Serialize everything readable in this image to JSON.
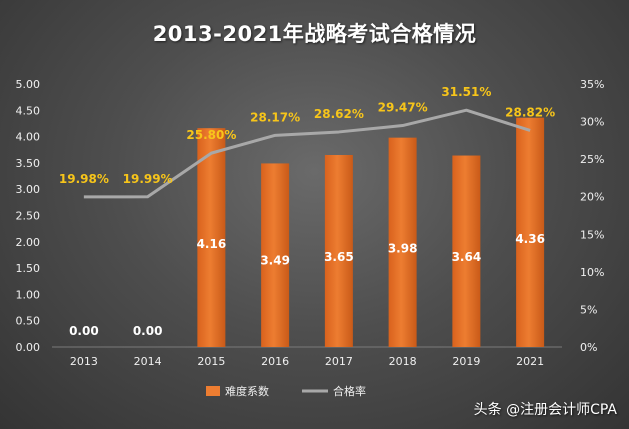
{
  "title": "2013-2021年战略考试合格情况",
  "footer_text": "头条 @注册会计师CPA",
  "colors": {
    "bar": "#ed7d31",
    "line": "#a8a8a8",
    "rate_label": "#f7c51a",
    "bar_label": "#ffffff"
  },
  "chart_data": {
    "type": "bar",
    "categories": [
      "2013",
      "2014",
      "2015",
      "2016",
      "2017",
      "2018",
      "2019",
      "2021"
    ],
    "series": [
      {
        "name": "难度系数",
        "type": "bar",
        "axis": "left",
        "values": [
          0.0,
          0.0,
          4.16,
          3.49,
          3.65,
          3.98,
          3.64,
          4.36
        ],
        "labels": [
          "0.00",
          "0.00",
          "4.16",
          "3.49",
          "3.65",
          "3.98",
          "3.64",
          "4.36"
        ]
      },
      {
        "name": "合格率",
        "type": "line",
        "axis": "right",
        "values": [
          19.98,
          19.99,
          25.8,
          28.17,
          28.62,
          29.47,
          31.51,
          28.82
        ],
        "labels": [
          "19.98%",
          "19.99%",
          "25.80%",
          "28.17%",
          "28.62%",
          "29.47%",
          "31.51%",
          "28.82%"
        ]
      }
    ],
    "y_left": {
      "ylim": [
        0,
        5
      ],
      "ticks": [
        "0.00",
        "0.50",
        "1.00",
        "1.50",
        "2.00",
        "2.50",
        "3.00",
        "3.50",
        "4.00",
        "4.50",
        "5.00"
      ]
    },
    "y_right": {
      "ylim": [
        0,
        35
      ],
      "ticks": [
        "0%",
        "5%",
        "10%",
        "15%",
        "20%",
        "25%",
        "30%",
        "35%"
      ]
    },
    "legend": {
      "position": "bottom",
      "items": [
        "难度系数",
        "合格率"
      ]
    },
    "grid": false
  }
}
